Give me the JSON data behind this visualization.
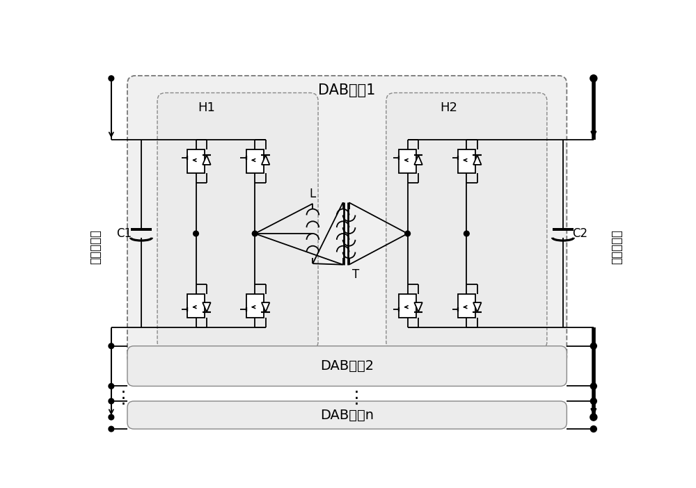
{
  "fig_width": 10.0,
  "fig_height": 7.02,
  "dpi": 100,
  "bg_color": "#ffffff",
  "line_color": "#000000",
  "text_color": "#000000",
  "labels": {
    "DAB1": "DAB单到1",
    "DAB2": "DAB单到2",
    "DABn": "DAB单到n",
    "H1": "H1",
    "H2": "H2",
    "L": "L",
    "T": "T",
    "C1": "C1",
    "C2": "C2",
    "left_side": "高压直流侧",
    "right_side": "低压直流侧"
  }
}
